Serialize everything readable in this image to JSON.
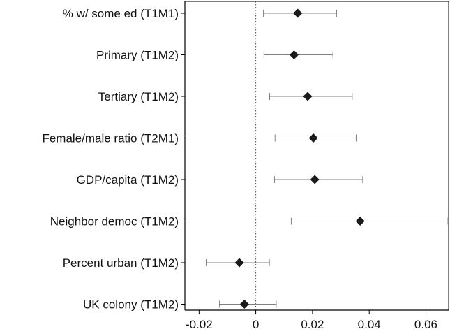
{
  "chart_data": {
    "type": "forest",
    "title": "",
    "xlabel": "",
    "ylabel": "",
    "xlim": [
      -0.025,
      0.068
    ],
    "x_ticks": [
      -0.02,
      0,
      0.02,
      0.04,
      0.06
    ],
    "x_tick_labels": [
      "-0.02",
      "0",
      "0.02",
      "0.04",
      "0.06"
    ],
    "reference_line": 0,
    "grid": false,
    "marker": "diamond",
    "marker_color": "#1a1a1a",
    "interval_color": "#808080",
    "rows": [
      {
        "label": "% w/ some ed (T1M1)",
        "estimate": 0.0148,
        "lower": 0.0027,
        "upper": 0.0285
      },
      {
        "label": "Primary (T1M2)",
        "estimate": 0.0135,
        "lower": 0.0029,
        "upper": 0.0272
      },
      {
        "label": "Tertiary (T1M2)",
        "estimate": 0.0183,
        "lower": 0.0049,
        "upper": 0.034
      },
      {
        "label": "Female/male ratio (T2M1)",
        "estimate": 0.0203,
        "lower": 0.0068,
        "upper": 0.0354
      },
      {
        "label": "GDP/capita (T1M2)",
        "estimate": 0.0208,
        "lower": 0.0066,
        "upper": 0.0377
      },
      {
        "label": "Neighbor democ (T1M2)",
        "estimate": 0.0368,
        "lower": 0.0125,
        "upper": 0.0675
      },
      {
        "label": "Percent urban (T1M2)",
        "estimate": -0.0058,
        "lower": -0.0175,
        "upper": 0.0048
      },
      {
        "label": "UK colony (T1M2)",
        "estimate": -0.004,
        "lower": -0.0128,
        "upper": 0.0072
      }
    ]
  }
}
